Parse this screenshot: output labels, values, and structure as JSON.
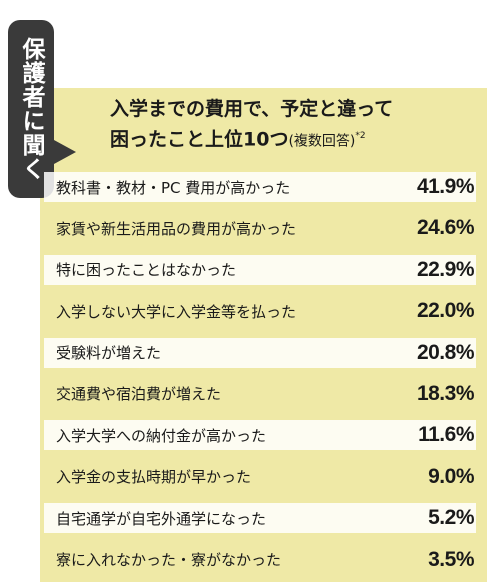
{
  "side_label": "保護者に聞く",
  "title_line1": "入学までの費用で、予定と違って",
  "title_line2": "困ったこと上位10つ",
  "title_sub": "(複数回答)",
  "title_note": "*2",
  "chart_data": {
    "type": "table",
    "rows": [
      {
        "label": "教科書・教材・PC 費用が高かった",
        "value": "41.9%"
      },
      {
        "label": "家賃や新生活用品の費用が高かった",
        "value": "24.6%"
      },
      {
        "label": "特に困ったことはなかった",
        "value": "22.9%"
      },
      {
        "label": "入学しない大学に入学金等を払った",
        "value": "22.0%"
      },
      {
        "label": "受験料が増えた",
        "value": "20.8%"
      },
      {
        "label": "交通費や宿泊費が増えた",
        "value": "18.3%"
      },
      {
        "label": "入学大学への納付金が高かった",
        "value": "11.6%"
      },
      {
        "label": "入学金の支払時期が早かった",
        "value": "9.0%"
      },
      {
        "label": "自宅通学が自宅外通学になった",
        "value": "5.2%"
      },
      {
        "label": "寮に入れなかった・寮がなかった",
        "value": "3.5%"
      }
    ]
  },
  "colors": {
    "panel": "#efe9a6",
    "tab": "#3a3a3a",
    "row_alt": "#ffffff"
  }
}
